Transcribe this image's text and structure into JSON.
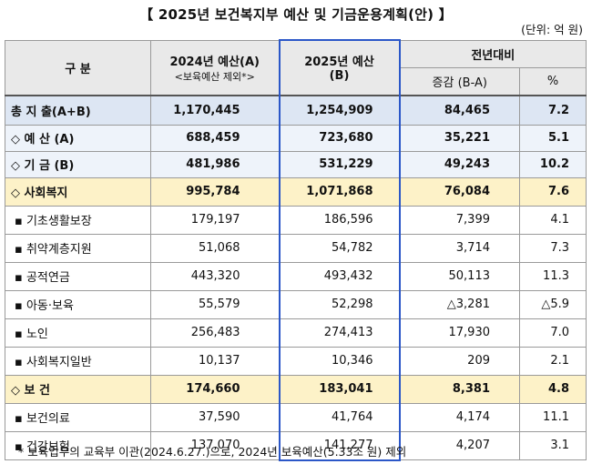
{
  "title": "【 2025년 보건복지부 예산 및 기금운용계획(안) 】",
  "unit": "(단위: 억 원)",
  "header": {
    "category": "구 분",
    "y2024_line1": "2024년 예산(A)",
    "y2024_line2": "<보육예산 제외*>",
    "y2025_line1": "2025년 예산",
    "y2025_line2": "(B)",
    "yoy": "전년대비",
    "diff": "증감 (B-A)",
    "pct": "%"
  },
  "rows": [
    {
      "label": "총 지 출(A+B)",
      "a": "1,170,445",
      "b": "1,254,909",
      "diff": "84,465",
      "pct": "7.2"
    },
    {
      "label": "◇ 예 산 (A)",
      "a": "688,459",
      "b": "723,680",
      "diff": "35,221",
      "pct": "5.1"
    },
    {
      "label": "◇ 기 금 (B)",
      "a": "481,986",
      "b": "531,229",
      "diff": "49,243",
      "pct": "10.2"
    },
    {
      "label": "◇ 사회복지",
      "a": "995,784",
      "b": "1,071,868",
      "diff": "76,084",
      "pct": "7.6"
    },
    {
      "label": "▪ 기초생활보장",
      "a": "179,197",
      "b": "186,596",
      "diff": "7,399",
      "pct": "4.1"
    },
    {
      "label": "▪ 취약계층지원",
      "a": "51,068",
      "b": "54,782",
      "diff": "3,714",
      "pct": "7.3"
    },
    {
      "label": "▪ 공적연금",
      "a": "443,320",
      "b": "493,432",
      "diff": "50,113",
      "pct": "11.3"
    },
    {
      "label": "▪ 아동·보육",
      "a": "55,579",
      "b": "52,298",
      "diff": "△3,281",
      "pct": "△5.9"
    },
    {
      "label": "▪ 노인",
      "a": "256,483",
      "b": "274,413",
      "diff": "17,930",
      "pct": "7.0"
    },
    {
      "label": "▪ 사회복지일반",
      "a": "10,137",
      "b": "10,346",
      "diff": "209",
      "pct": "2.1"
    },
    {
      "label": "◇ 보 건",
      "a": "174,660",
      "b": "183,041",
      "diff": "8,381",
      "pct": "4.8"
    },
    {
      "label": "▪ 보건의료",
      "a": "37,590",
      "b": "41,764",
      "diff": "4,174",
      "pct": "11.1"
    },
    {
      "label": "▪ 건강보험",
      "a": "137,070",
      "b": "141,277",
      "diff": "4,207",
      "pct": "3.1"
    }
  ],
  "footnote": "* 보육업무의 교육부 이관(2024.6.27.)으로, 2024년 보육예산(5.33조 원) 제외",
  "colors": {
    "accent_border": "#2b57c8",
    "total_bg": "#dde6f3",
    "group_bg": "#eef3fa",
    "category_bg": "#fdf2c8",
    "header_bg": "#e9e9e9"
  }
}
